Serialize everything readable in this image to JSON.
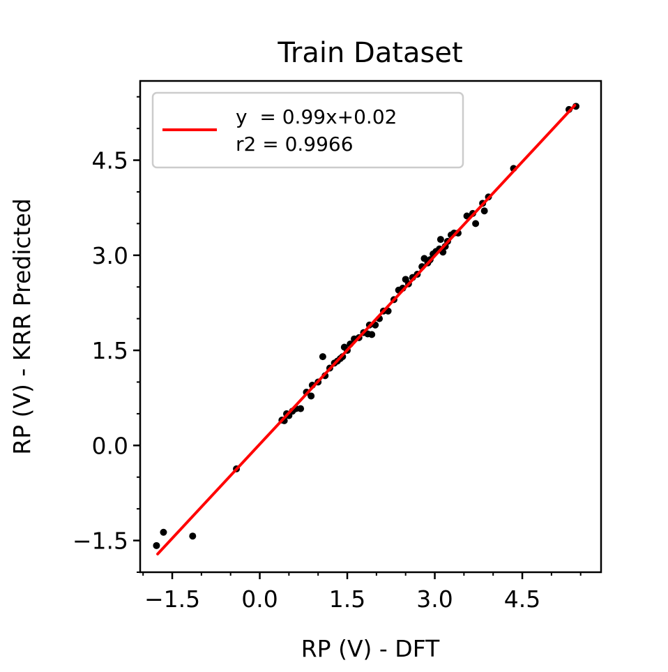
{
  "chart_data": {
    "type": "scatter",
    "title": "Train Dataset",
    "xlabel": "RP (V) - DFT",
    "ylabel": "RP (V) - KRR Predicted",
    "xlim": [
      -2.05,
      5.85
    ],
    "ylim": [
      -2.0,
      5.75
    ],
    "xticks": [
      -1.5,
      0.0,
      1.5,
      3.0,
      4.5
    ],
    "xtick_labels": [
      "−1.5",
      "0.0",
      "1.5",
      "3.0",
      "4.5"
    ],
    "yticks": [
      -1.5,
      0.0,
      1.5,
      3.0,
      4.5
    ],
    "ytick_labels": [
      "−1.5",
      "0.0",
      "1.5",
      "3.0",
      "4.5"
    ],
    "x_minor_step": 0.5,
    "y_minor_step": 0.5,
    "grid": false,
    "legend": {
      "placement": "top-left",
      "entries": [
        "y  = 0.99x+0.02",
        "r2 = 0.9966"
      ]
    },
    "fit_line": {
      "slope": 0.99,
      "intercept": 0.02,
      "x_range": [
        -1.75,
        5.4
      ],
      "color": "#ff0000"
    },
    "point_color": "#000000",
    "points": [
      [
        -1.77,
        -1.58
      ],
      [
        -1.65,
        -1.37
      ],
      [
        -1.15,
        -1.43
      ],
      [
        -0.4,
        -0.37
      ],
      [
        0.38,
        0.4
      ],
      [
        0.42,
        0.39
      ],
      [
        0.46,
        0.5
      ],
      [
        0.5,
        0.47
      ],
      [
        0.56,
        0.54
      ],
      [
        0.62,
        0.58
      ],
      [
        0.7,
        0.58
      ],
      [
        0.8,
        0.84
      ],
      [
        0.88,
        0.78
      ],
      [
        0.9,
        0.95
      ],
      [
        1.0,
        1.0
      ],
      [
        1.08,
        1.4
      ],
      [
        1.12,
        1.1
      ],
      [
        1.2,
        1.22
      ],
      [
        1.28,
        1.3
      ],
      [
        1.33,
        1.33
      ],
      [
        1.38,
        1.37
      ],
      [
        1.42,
        1.4
      ],
      [
        1.45,
        1.55
      ],
      [
        1.5,
        1.5
      ],
      [
        1.55,
        1.6
      ],
      [
        1.62,
        1.68
      ],
      [
        1.7,
        1.7
      ],
      [
        1.78,
        1.78
      ],
      [
        1.85,
        1.76
      ],
      [
        1.88,
        1.9
      ],
      [
        1.92,
        1.75
      ],
      [
        1.98,
        1.9
      ],
      [
        2.05,
        2.0
      ],
      [
        2.12,
        2.12
      ],
      [
        2.2,
        2.12
      ],
      [
        2.3,
        2.3
      ],
      [
        2.38,
        2.45
      ],
      [
        2.45,
        2.48
      ],
      [
        2.5,
        2.62
      ],
      [
        2.55,
        2.55
      ],
      [
        2.62,
        2.65
      ],
      [
        2.7,
        2.7
      ],
      [
        2.78,
        2.82
      ],
      [
        2.82,
        2.95
      ],
      [
        2.88,
        2.88
      ],
      [
        2.92,
        2.93
      ],
      [
        2.97,
        3.02
      ],
      [
        3.02,
        3.06
      ],
      [
        3.08,
        3.1
      ],
      [
        3.1,
        3.25
      ],
      [
        3.14,
        3.05
      ],
      [
        3.18,
        3.14
      ],
      [
        3.22,
        3.22
      ],
      [
        3.28,
        3.32
      ],
      [
        3.33,
        3.35
      ],
      [
        3.4,
        3.35
      ],
      [
        3.55,
        3.62
      ],
      [
        3.65,
        3.66
      ],
      [
        3.7,
        3.5
      ],
      [
        3.82,
        3.82
      ],
      [
        3.85,
        3.7
      ],
      [
        3.92,
        3.92
      ],
      [
        4.35,
        4.37
      ],
      [
        5.3,
        5.3
      ],
      [
        5.42,
        5.35
      ]
    ]
  }
}
